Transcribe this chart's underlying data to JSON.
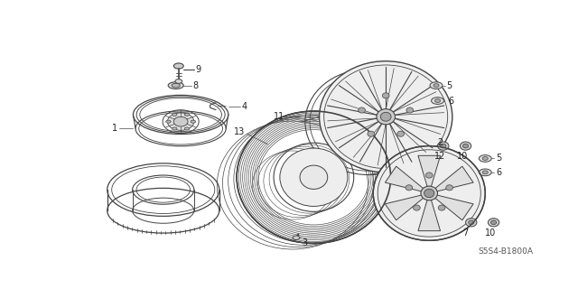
{
  "background_color": "#ffffff",
  "line_color": "#444444",
  "diagram_code": "S5S4-B1800A",
  "label_fs": 7,
  "lw": 0.8
}
